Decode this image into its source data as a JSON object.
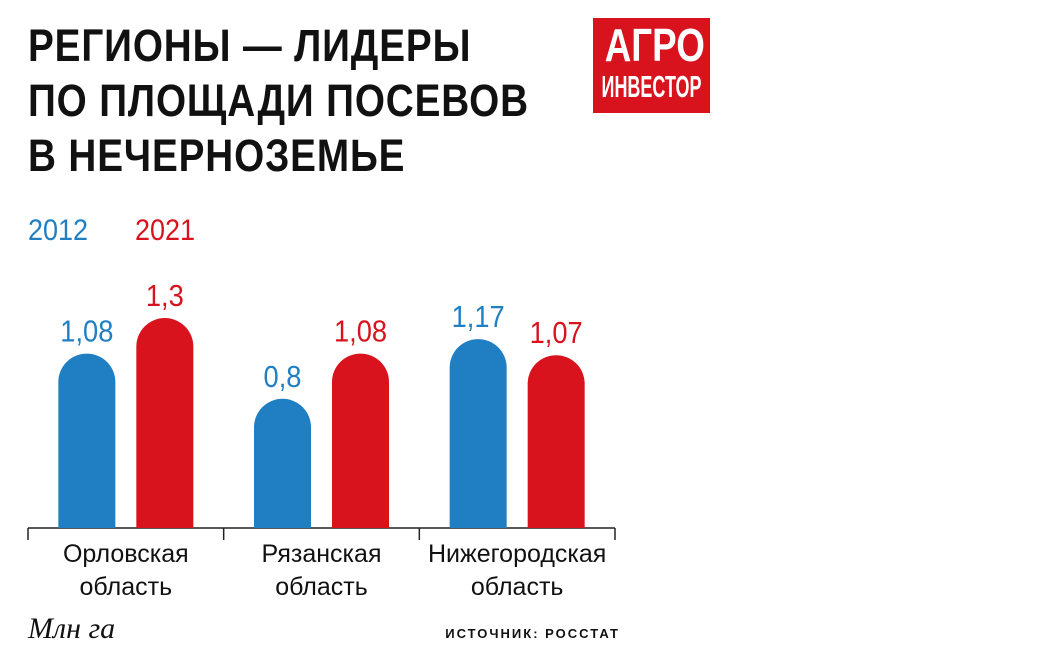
{
  "chart_data": {
    "type": "bar",
    "title": [
      "РЕГИОНЫ — ЛИДЕРЫ",
      "ПО ПЛОЩАДИ ПОСЕВОВ",
      "В НЕЧЕРНОЗЕМЬЕ"
    ],
    "categories": [
      "Орловская область",
      "Рязанская область",
      "Нижегородская область"
    ],
    "series": [
      {
        "name": "2012",
        "color": "#1f7fc2",
        "values": [
          1.08,
          0.8,
          1.17
        ],
        "value_labels": [
          "1,08",
          "0,8",
          "1,17"
        ]
      },
      {
        "name": "2021",
        "color": "#d8131d",
        "values": [
          1.3,
          1.08,
          1.07
        ],
        "value_labels": [
          "1,3",
          "1,08",
          "1,07"
        ]
      }
    ],
    "unit": "Млн га",
    "source": "ИСТОЧНИК: РОССТАТ"
  },
  "logo": {
    "line1": "АГРО",
    "line2": "ИНВЕСТОР"
  }
}
